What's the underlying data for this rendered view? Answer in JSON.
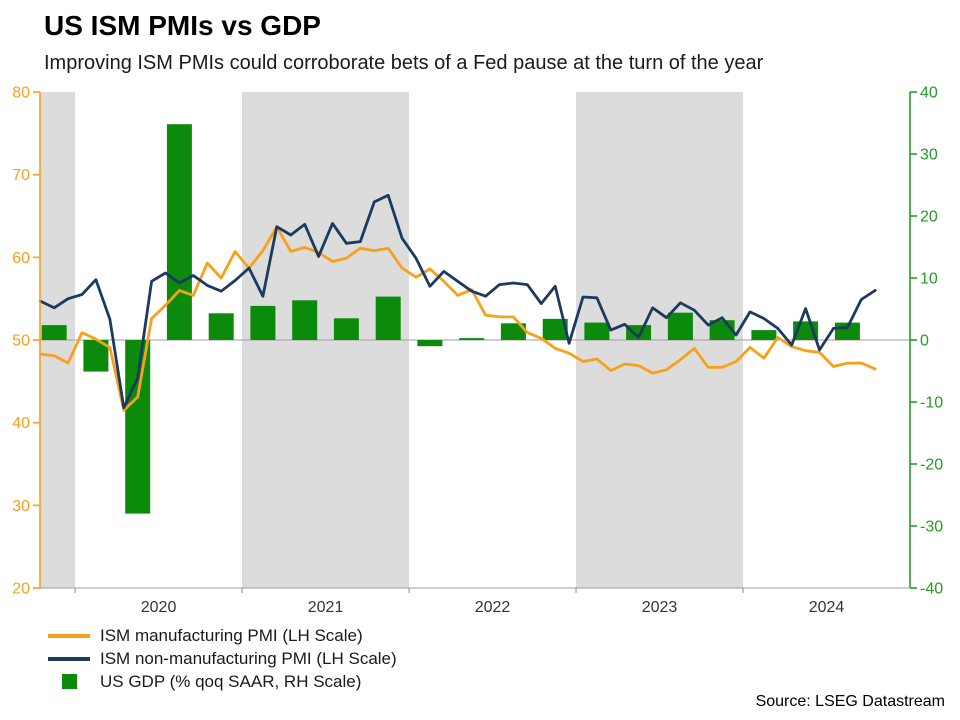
{
  "header": {
    "title": "US ISM PMIs vs GDP",
    "subtitle": "Improving ISM PMIs could corroborate bets of a Fed pause at the turn of the year"
  },
  "footer": {
    "source": "Source: LSEG Datastream"
  },
  "legend": [
    {
      "type": "line",
      "color": "#f9a01b",
      "label": "ISM manufacturing PMI (LH Scale)"
    },
    {
      "type": "line",
      "color": "#1b3a5f",
      "label": "ISM non-manufacturing PMI (LH Scale)"
    },
    {
      "type": "bar",
      "color": "#0c8a0c",
      "label": "US GDP (% qoq SAAR, RH Scale)"
    }
  ],
  "chart_data": {
    "type": "line+bar",
    "title": "US ISM PMIs vs GDP",
    "subtitle": "Improving ISM PMIs could corroborate bets of a Fed pause at the turn of the year",
    "x_domain": [
      2019.79,
      2025.0
    ],
    "x_ticks": [
      2020,
      2021,
      2022,
      2023,
      2024
    ],
    "shaded_bands": [
      [
        2019.79,
        2020
      ],
      [
        2021,
        2022
      ],
      [
        2023,
        2024
      ]
    ],
    "band_color": "#dcdcdc",
    "zero_line_left_value": 50,
    "left_axis": {
      "min": 20,
      "max": 80,
      "ticks": [
        20,
        30,
        40,
        50,
        60,
        70,
        80
      ],
      "color": "#f9a01b"
    },
    "right_axis": {
      "min": -40,
      "max": 40,
      "ticks": [
        -40,
        -30,
        -20,
        -10,
        0,
        10,
        20,
        30,
        40
      ],
      "color": "#279b27"
    },
    "series": [
      {
        "name": "ISM manufacturing PMI (LH Scale)",
        "type": "line",
        "axis": "left",
        "color": "#f9a01b",
        "freq": "monthly",
        "start": "2019-10",
        "values": [
          48.3,
          48.1,
          47.2,
          50.9,
          50.1,
          49.1,
          41.5,
          43.1,
          52.6,
          54.2,
          56.0,
          55.4,
          59.3,
          57.5,
          60.7,
          58.7,
          60.8,
          63.7,
          60.7,
          61.2,
          60.6,
          59.5,
          59.9,
          61.1,
          60.8,
          61.1,
          58.7,
          57.6,
          58.6,
          57.1,
          55.4,
          56.1,
          53.0,
          52.8,
          52.8,
          50.9,
          50.2,
          49.0,
          48.4,
          47.4,
          47.7,
          46.3,
          47.1,
          46.9,
          46.0,
          46.4,
          47.6,
          49.0,
          46.7,
          46.7,
          47.4,
          49.1,
          47.8,
          50.3,
          49.2,
          48.7,
          48.5,
          46.8,
          47.2,
          47.2,
          46.5
        ]
      },
      {
        "name": "ISM non-manufacturing PMI (LH Scale)",
        "type": "line",
        "axis": "left",
        "color": "#1b3a5f",
        "freq": "monthly",
        "start": "2019-10",
        "values": [
          54.7,
          53.9,
          55.0,
          55.5,
          57.3,
          52.5,
          41.8,
          45.4,
          57.1,
          58.1,
          56.9,
          57.8,
          56.6,
          55.9,
          57.2,
          58.7,
          55.3,
          63.7,
          62.7,
          64.0,
          60.1,
          64.1,
          61.7,
          61.9,
          66.7,
          67.5,
          62.3,
          59.9,
          56.5,
          58.3,
          57.1,
          55.9,
          55.3,
          56.7,
          56.9,
          56.7,
          54.4,
          56.5,
          49.6,
          55.2,
          55.1,
          51.2,
          51.9,
          50.3,
          53.9,
          52.7,
          54.5,
          53.6,
          51.8,
          52.7,
          50.6,
          53.4,
          52.6,
          51.4,
          49.4,
          53.8,
          48.8,
          51.4,
          51.5,
          54.9,
          56.0
        ]
      },
      {
        "name": "US GDP (% qoq SAAR, RH Scale)",
        "type": "bar",
        "axis": "right",
        "color": "#0c8a0c",
        "freq": "quarterly",
        "start": "2019-Q4",
        "values": [
          2.4,
          -5.1,
          -28.0,
          34.8,
          4.3,
          5.5,
          6.4,
          3.5,
          7.0,
          -1.0,
          0.3,
          2.7,
          3.4,
          2.8,
          2.4,
          4.4,
          3.2,
          1.6,
          3.0,
          2.8
        ]
      }
    ]
  }
}
